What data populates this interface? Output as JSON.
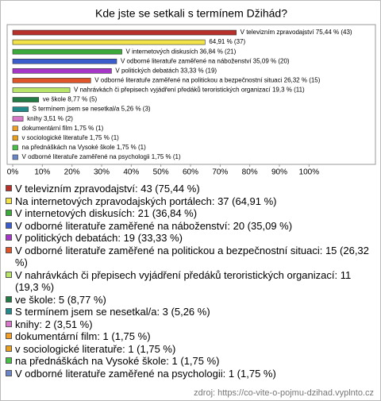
{
  "chart_data": {
    "type": "hbar",
    "title": "Kde jste se setkali s termínem Džihád?",
    "values": [
      75.44,
      64.91,
      36.84,
      35.09,
      33.33,
      26.32,
      19.3,
      8.77,
      5.26,
      3.51,
      1.75,
      1.75,
      1.75,
      1.75
    ],
    "value_labels": [
      "V televizním zpravodajství 75,44 % (43)",
      "64,91 % (37)",
      "V internetových diskusích 36,84 % (21)",
      "V odborné literatuře zaměřené na náboženství 35,09 % (20)",
      "V politických debatách 33,33 % (19)",
      "V odborné literatuře zaměřené na politickou a bezpečnostní situaci 26,32 % (15)",
      "V nahrávkách či přepisech vyjádření předáků teroristických organizací 19,3 % (11)",
      "ve škole 8,77 % (5)",
      "S termínem jsem se nesetkal/a 5,26 % (3)",
      "knihy 3,51 % (2)",
      "dokumentární film 1,75 % (1)",
      "v sociologické literatuře 1,75 % (1)",
      "na přednáškách na Vysoké škole 1,75 % (1)",
      "V odborné literatuře zaměřené na psychologii 1,75 % (1)"
    ],
    "colors": [
      "#b8302a",
      "#f2e24a",
      "#3aaa3a",
      "#3a5ccc",
      "#a536c8",
      "#e0542a",
      "#b8e46a",
      "#227a44",
      "#228a8a",
      "#d878c8",
      "#f0a028",
      "#e8a020",
      "#48c048",
      "#6a86c8"
    ],
    "legend": [
      "V televizním zpravodajství: 43 (75,44 %)",
      "Na internetových zpravodajských portálech: 37 (64,91 %)",
      "V internetových diskusích: 21 (36,84 %)",
      "V odborné literatuře zaměřené na náboženství: 20 (35,09 %)",
      "V politických debatách: 19 (33,33 %)",
      "V odborné literatuře zaměřené na politickou a bezpečnostní situaci: 15 (26,32 %)",
      "V nahrávkách či přepisech vyjádření předáků teroristických organizací: 11 (19,3 %)",
      "ve škole: 5 (8,77 %)",
      "S termínem jsem se nesetkal/a: 3 (5,26 %)",
      "knihy: 2 (3,51 %)",
      "dokumentární film: 1 (1,75 %)",
      "v sociologické literatuře: 1 (1,75 %)",
      "na přednáškách na Vysoké škole: 1 (1,75 %)",
      "V odborné literatuře zaměřené na psychologii: 1 (1,75 %)"
    ],
    "xlim": [
      0,
      120
    ],
    "xticks": [
      {
        "value": 0,
        "label": "0%"
      },
      {
        "value": 10,
        "label": "10%"
      },
      {
        "value": 20,
        "label": "20%"
      },
      {
        "value": 30,
        "label": "30%"
      },
      {
        "value": 40,
        "label": "40%"
      },
      {
        "value": 50,
        "label": "50%"
      },
      {
        "value": 60,
        "label": "60%"
      },
      {
        "value": 70,
        "label": "70%"
      },
      {
        "value": 80,
        "label": "80%"
      },
      {
        "value": 90,
        "label": "90%"
      },
      {
        "value": 100,
        "label": "100%"
      }
    ],
    "source": "zdroj: https://co-vite-o-pojmu-dzihad.vyplnto.cz"
  }
}
